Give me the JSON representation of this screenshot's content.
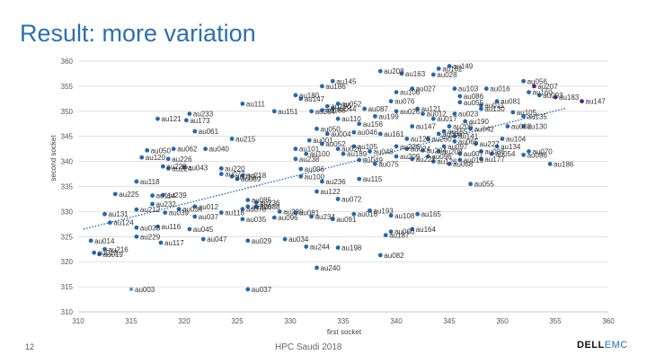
{
  "slide": {
    "title": "Result: more variation",
    "page_number": "12",
    "footer": "HPC Saudi 2018",
    "brand": "DELL",
    "brand_suffix": "EMC"
  },
  "colors": {
    "title": "#2b6fb2",
    "point": "#2468b0",
    "highlight": "#4a2a8a",
    "trend": "#1d5fa8",
    "grid": "#d9d9d9"
  },
  "chart_data": {
    "type": "scatter",
    "title": "",
    "xlabel": "first socket",
    "ylabel": "second socket",
    "xlim": [
      310,
      360
    ],
    "ylim": [
      310,
      360
    ],
    "xticks": [
      310,
      315,
      320,
      325,
      330,
      335,
      340,
      345,
      350,
      355,
      360
    ],
    "yticks": [
      310,
      315,
      320,
      325,
      330,
      335,
      340,
      345,
      350,
      355,
      360
    ],
    "grid": "horizontal",
    "trendline": {
      "style": "dotted",
      "from": [
        310.5,
        326.5
      ],
      "to": [
        356,
        350.6
      ]
    },
    "points": [
      {
        "x": 315,
        "y": 314.5,
        "label": "au003",
        "marker": "star"
      },
      {
        "x": 326,
        "y": 314.5,
        "label": "au037"
      },
      {
        "x": 332.5,
        "y": 318.8,
        "label": "au240"
      },
      {
        "x": 312,
        "y": 321.5,
        "label": "au019"
      },
      {
        "x": 311.5,
        "y": 321.8,
        "label": "au013"
      },
      {
        "x": 312.5,
        "y": 322.5,
        "label": "au216"
      },
      {
        "x": 311.2,
        "y": 324.2,
        "label": "au014"
      },
      {
        "x": 315.5,
        "y": 326.8,
        "label": "au033"
      },
      {
        "x": 317.8,
        "y": 323.8,
        "label": "au117"
      },
      {
        "x": 321.8,
        "y": 324.5,
        "label": "au047"
      },
      {
        "x": 313,
        "y": 327.8,
        "label": "au124"
      },
      {
        "x": 315.5,
        "y": 325,
        "label": "au229"
      },
      {
        "x": 317.5,
        "y": 327,
        "label": "au116"
      },
      {
        "x": 320.5,
        "y": 326.5,
        "label": "au045"
      },
      {
        "x": 326,
        "y": 324.2,
        "label": "au029"
      },
      {
        "x": 329.5,
        "y": 324.5,
        "label": "au034"
      },
      {
        "x": 331.5,
        "y": 323,
        "label": "au244"
      },
      {
        "x": 334.5,
        "y": 322.8,
        "label": "au198"
      },
      {
        "x": 338.5,
        "y": 321.3,
        "label": "au082"
      },
      {
        "x": 339,
        "y": 325.3,
        "label": "au187"
      },
      {
        "x": 341.5,
        "y": 326.5,
        "label": "au164"
      },
      {
        "x": 339.5,
        "y": 326,
        "label": "au060"
      },
      {
        "x": 312.5,
        "y": 329.5,
        "label": "au131"
      },
      {
        "x": 315.5,
        "y": 330.4,
        "label": "au212"
      },
      {
        "x": 318.2,
        "y": 329.8,
        "label": "au039"
      },
      {
        "x": 319.5,
        "y": 330.5,
        "label": "au034"
      },
      {
        "x": 321,
        "y": 331,
        "label": "au012"
      },
      {
        "x": 323.5,
        "y": 329.8,
        "label": "au118"
      },
      {
        "x": 321,
        "y": 329,
        "label": "au037"
      },
      {
        "x": 325.5,
        "y": 330.5,
        "label": "au070"
      },
      {
        "x": 326.8,
        "y": 331,
        "label": "au088"
      },
      {
        "x": 325.5,
        "y": 328.5,
        "label": "au035"
      },
      {
        "x": 330.5,
        "y": 329.8,
        "label": "au081"
      },
      {
        "x": 329,
        "y": 330,
        "label": "au230"
      },
      {
        "x": 328.5,
        "y": 328.8,
        "label": "au096"
      },
      {
        "x": 332,
        "y": 329,
        "label": "au234"
      },
      {
        "x": 334,
        "y": 328.5,
        "label": "au091"
      },
      {
        "x": 336,
        "y": 329.5,
        "label": "au016"
      },
      {
        "x": 337.5,
        "y": 330.2,
        "label": "au193"
      },
      {
        "x": 339.5,
        "y": 329.2,
        "label": "au108"
      },
      {
        "x": 342,
        "y": 329.5,
        "label": "au165"
      },
      {
        "x": 313.5,
        "y": 333.5,
        "label": "au225"
      },
      {
        "x": 315.5,
        "y": 336,
        "label": "au118"
      },
      {
        "x": 317,
        "y": 333.2,
        "label": "au114"
      },
      {
        "x": 318,
        "y": 333.3,
        "label": "au239"
      },
      {
        "x": 317,
        "y": 331.5,
        "label": "au232"
      },
      {
        "x": 326,
        "y": 331,
        "label": "au226"
      },
      {
        "x": 326.8,
        "y": 331.8,
        "label": "au236"
      },
      {
        "x": 326,
        "y": 332.3,
        "label": "au085"
      },
      {
        "x": 332.5,
        "y": 334,
        "label": "au122"
      },
      {
        "x": 333,
        "y": 336,
        "label": "au236"
      },
      {
        "x": 334.5,
        "y": 332.5,
        "label": "au072"
      },
      {
        "x": 336.5,
        "y": 336.5,
        "label": "au115"
      },
      {
        "x": 347,
        "y": 335.5,
        "label": "au055"
      },
      {
        "x": 318,
        "y": 339,
        "label": "au228"
      },
      {
        "x": 318.5,
        "y": 340.5,
        "label": "au226"
      },
      {
        "x": 318.5,
        "y": 338.6,
        "label": "au224"
      },
      {
        "x": 320,
        "y": 338.8,
        "label": "au043"
      },
      {
        "x": 323.5,
        "y": 338.6,
        "label": "au220"
      },
      {
        "x": 323.5,
        "y": 337.5,
        "label": "au077"
      },
      {
        "x": 324.5,
        "y": 337,
        "label": "au012"
      },
      {
        "x": 325.5,
        "y": 337.2,
        "label": "au218"
      },
      {
        "x": 325,
        "y": 336.5,
        "label": "au089"
      },
      {
        "x": 331,
        "y": 338.5,
        "label": "au096"
      },
      {
        "x": 331,
        "y": 337,
        "label": "au100"
      },
      {
        "x": 319,
        "y": 342.5,
        "label": "au062"
      },
      {
        "x": 316.5,
        "y": 342.2,
        "label": "au050"
      },
      {
        "x": 316,
        "y": 340.8,
        "label": "au120"
      },
      {
        "x": 322,
        "y": 342.5,
        "label": "au040"
      },
      {
        "x": 317.5,
        "y": 348.5,
        "label": "au121"
      },
      {
        "x": 320.5,
        "y": 349.5,
        "label": "au233"
      },
      {
        "x": 320.2,
        "y": 348.2,
        "label": "au173"
      },
      {
        "x": 321,
        "y": 346,
        "label": "au061"
      },
      {
        "x": 324.5,
        "y": 344.5,
        "label": "au215"
      },
      {
        "x": 325.5,
        "y": 351.5,
        "label": "au111"
      },
      {
        "x": 328.5,
        "y": 350,
        "label": "au151"
      },
      {
        "x": 332,
        "y": 350,
        "label": "au264"
      },
      {
        "x": 333,
        "y": 350.2,
        "label": "au185"
      },
      {
        "x": 334,
        "y": 350.5,
        "label": "au044"
      },
      {
        "x": 337,
        "y": 350.5,
        "label": "au087"
      },
      {
        "x": 340,
        "y": 350,
        "label": "au026"
      },
      {
        "x": 338,
        "y": 349,
        "label": "au199"
      },
      {
        "x": 334.5,
        "y": 348.5,
        "label": "au110"
      },
      {
        "x": 336.5,
        "y": 347.5,
        "label": "au156"
      },
      {
        "x": 332.5,
        "y": 346.5,
        "label": "au050"
      },
      {
        "x": 333.5,
        "y": 345.5,
        "label": "au004"
      },
      {
        "x": 336,
        "y": 345.8,
        "label": "au046"
      },
      {
        "x": 338.5,
        "y": 345.5,
        "label": "au161"
      },
      {
        "x": 331.8,
        "y": 344.2,
        "label": "au001"
      },
      {
        "x": 333,
        "y": 343.5,
        "label": "au052"
      },
      {
        "x": 330.5,
        "y": 342.5,
        "label": "au101"
      },
      {
        "x": 331.5,
        "y": 341.5,
        "label": "au100"
      },
      {
        "x": 330.5,
        "y": 340.5,
        "label": "au238"
      },
      {
        "x": 334.5,
        "y": 342.5,
        "label": "au026"
      },
      {
        "x": 335,
        "y": 341.5,
        "label": "au189"
      },
      {
        "x": 336,
        "y": 343,
        "label": "au105"
      },
      {
        "x": 337.5,
        "y": 342,
        "label": "au048"
      },
      {
        "x": 336.5,
        "y": 340.3,
        "label": "au049"
      },
      {
        "x": 338,
        "y": 339.5,
        "label": "au075"
      },
      {
        "x": 340,
        "y": 343,
        "label": "au226"
      },
      {
        "x": 341,
        "y": 342.5,
        "label": "au024"
      },
      {
        "x": 342.5,
        "y": 342.2,
        "label": "au204"
      },
      {
        "x": 340,
        "y": 341,
        "label": "au209"
      },
      {
        "x": 341.5,
        "y": 340.5,
        "label": "au221"
      },
      {
        "x": 343,
        "y": 341,
        "label": "au096"
      },
      {
        "x": 344,
        "y": 342,
        "label": "au208"
      },
      {
        "x": 343.5,
        "y": 340,
        "label": "au126"
      },
      {
        "x": 345,
        "y": 339.5,
        "label": "au068"
      },
      {
        "x": 346,
        "y": 340.3,
        "label": "au019"
      },
      {
        "x": 346,
        "y": 341.5,
        "label": "au007"
      },
      {
        "x": 347.5,
        "y": 343.5,
        "label": "au227"
      },
      {
        "x": 348,
        "y": 342,
        "label": "au086"
      },
      {
        "x": 349,
        "y": 341.5,
        "label": "au054"
      },
      {
        "x": 348,
        "y": 340.5,
        "label": "au177"
      },
      {
        "x": 349.5,
        "y": 343,
        "label": "au134"
      },
      {
        "x": 350,
        "y": 344.5,
        "label": "au104"
      },
      {
        "x": 352,
        "y": 347,
        "label": "au130"
      },
      {
        "x": 352.5,
        "y": 342,
        "label": "au070"
      },
      {
        "x": 352,
        "y": 341.3,
        "label": "au086"
      },
      {
        "x": 354.5,
        "y": 339.5,
        "label": "au186"
      },
      {
        "x": 350.5,
        "y": 347,
        "label": "au002"
      },
      {
        "x": 352,
        "y": 349,
        "label": "au135"
      },
      {
        "x": 351,
        "y": 349.8,
        "label": "au105"
      },
      {
        "x": 348,
        "y": 350.5,
        "label": "au130"
      },
      {
        "x": 342.5,
        "y": 349.5,
        "label": "au012"
      },
      {
        "x": 343.5,
        "y": 348.5,
        "label": "au017"
      },
      {
        "x": 345,
        "y": 347,
        "label": "au206"
      },
      {
        "x": 344.5,
        "y": 346,
        "label": "au155"
      },
      {
        "x": 344,
        "y": 345.5,
        "label": "au066"
      },
      {
        "x": 345.5,
        "y": 345,
        "label": "au141"
      },
      {
        "x": 346.5,
        "y": 348,
        "label": "au190"
      },
      {
        "x": 347,
        "y": 346.5,
        "label": "au042"
      },
      {
        "x": 343,
        "y": 344.5,
        "label": "au250"
      },
      {
        "x": 341,
        "y": 344.5,
        "label": "au125"
      },
      {
        "x": 341.5,
        "y": 347,
        "label": "au147"
      },
      {
        "x": 345.5,
        "y": 344,
        "label": "au065"
      },
      {
        "x": 344.5,
        "y": 343,
        "label": "au097"
      },
      {
        "x": 342,
        "y": 350.5,
        "label": "au121"
      },
      {
        "x": 346,
        "y": 351.8,
        "label": "au055"
      },
      {
        "x": 345.5,
        "y": 349.5,
        "label": "au023"
      },
      {
        "x": 348,
        "y": 351.2,
        "label": "au011"
      },
      {
        "x": 349.5,
        "y": 352,
        "label": "au081"
      },
      {
        "x": 348.5,
        "y": 354.5,
        "label": "au016"
      },
      {
        "x": 346,
        "y": 353,
        "label": "au086"
      },
      {
        "x": 345.5,
        "y": 354.5,
        "label": "au103"
      },
      {
        "x": 341.5,
        "y": 354.5,
        "label": "au027"
      },
      {
        "x": 340,
        "y": 353.8,
        "label": "au106"
      },
      {
        "x": 339.5,
        "y": 352,
        "label": "au076"
      },
      {
        "x": 334.5,
        "y": 351.5,
        "label": "au052"
      },
      {
        "x": 333.5,
        "y": 351,
        "label": "au190"
      },
      {
        "x": 331,
        "y": 352.5,
        "label": "au147"
      },
      {
        "x": 330.5,
        "y": 353.2,
        "label": "au180"
      },
      {
        "x": 333,
        "y": 355,
        "label": "au186"
      },
      {
        "x": 334,
        "y": 356,
        "label": "au145"
      },
      {
        "x": 338.5,
        "y": 358,
        "label": "au208"
      },
      {
        "x": 340.5,
        "y": 357.5,
        "label": "au163"
      },
      {
        "x": 344,
        "y": 358.5,
        "label": "au162"
      },
      {
        "x": 345,
        "y": 359,
        "label": "au149"
      },
      {
        "x": 343.5,
        "y": 357.3,
        "label": "au028"
      },
      {
        "x": 352,
        "y": 356,
        "label": "au056"
      },
      {
        "x": 353,
        "y": 355,
        "label": "au207",
        "marker": "highlight"
      },
      {
        "x": 352.5,
        "y": 353.8,
        "label": "au160"
      },
      {
        "x": 353.5,
        "y": 353.2,
        "label": "au093"
      },
      {
        "x": 355,
        "y": 352.8,
        "label": "au183",
        "marker": "highlight"
      },
      {
        "x": 357.5,
        "y": 352,
        "label": "au147",
        "marker": "highlight"
      }
    ]
  }
}
